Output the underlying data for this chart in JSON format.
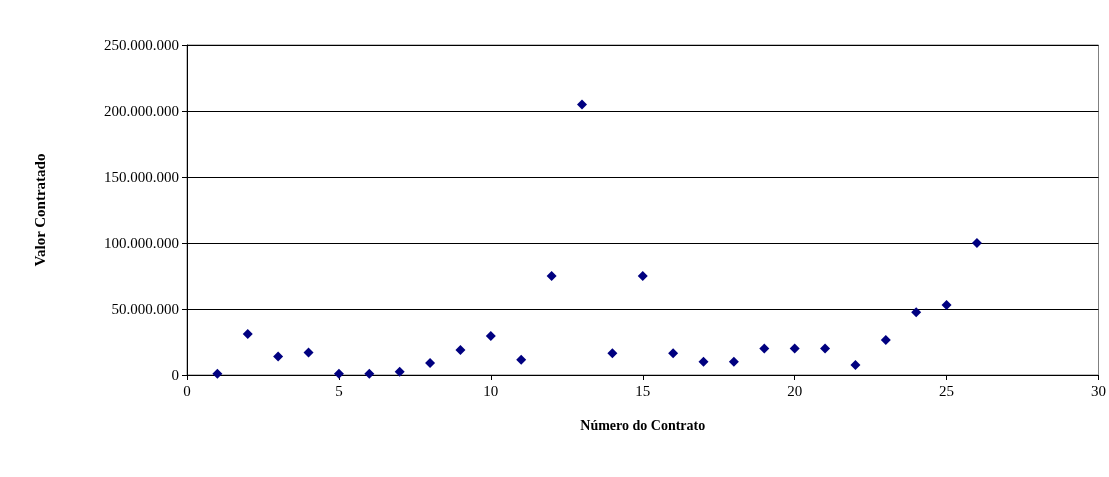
{
  "chart_data": {
    "type": "scatter",
    "xlabel": "Número do Contrato",
    "ylabel": "Valor Contratado",
    "x": [
      1,
      2,
      3,
      4,
      5,
      6,
      7,
      8,
      9,
      10,
      11,
      12,
      13,
      14,
      15,
      16,
      17,
      18,
      19,
      20,
      21,
      22,
      23,
      24,
      25,
      26
    ],
    "values": [
      1000000,
      31000000,
      14000000,
      17000000,
      1000000,
      1000000,
      2500000,
      9000000,
      19000000,
      29500000,
      11500000,
      75000000,
      205000000,
      16500000,
      75000000,
      16500000,
      10000000,
      10000000,
      20000000,
      20000000,
      20000000,
      7500000,
      26500000,
      47500000,
      53000000,
      100000000
    ],
    "color": "#000080",
    "marker": "diamond",
    "grid": "y",
    "xlim": [
      0,
      30
    ],
    "xticks": [
      0,
      5,
      10,
      15,
      20,
      25,
      30
    ],
    "ylim": [
      0,
      250000000
    ],
    "yticks": [
      0,
      {
        "value": 50000000,
        "label": "50.000.000"
      },
      {
        "value": 100000000,
        "label": "100.000.000"
      },
      {
        "value": 150000000,
        "label": "150.000.000"
      },
      {
        "value": 200000000,
        "label": "200.000.000"
      },
      {
        "value": 250000000,
        "label": "250.000.000"
      }
    ]
  }
}
